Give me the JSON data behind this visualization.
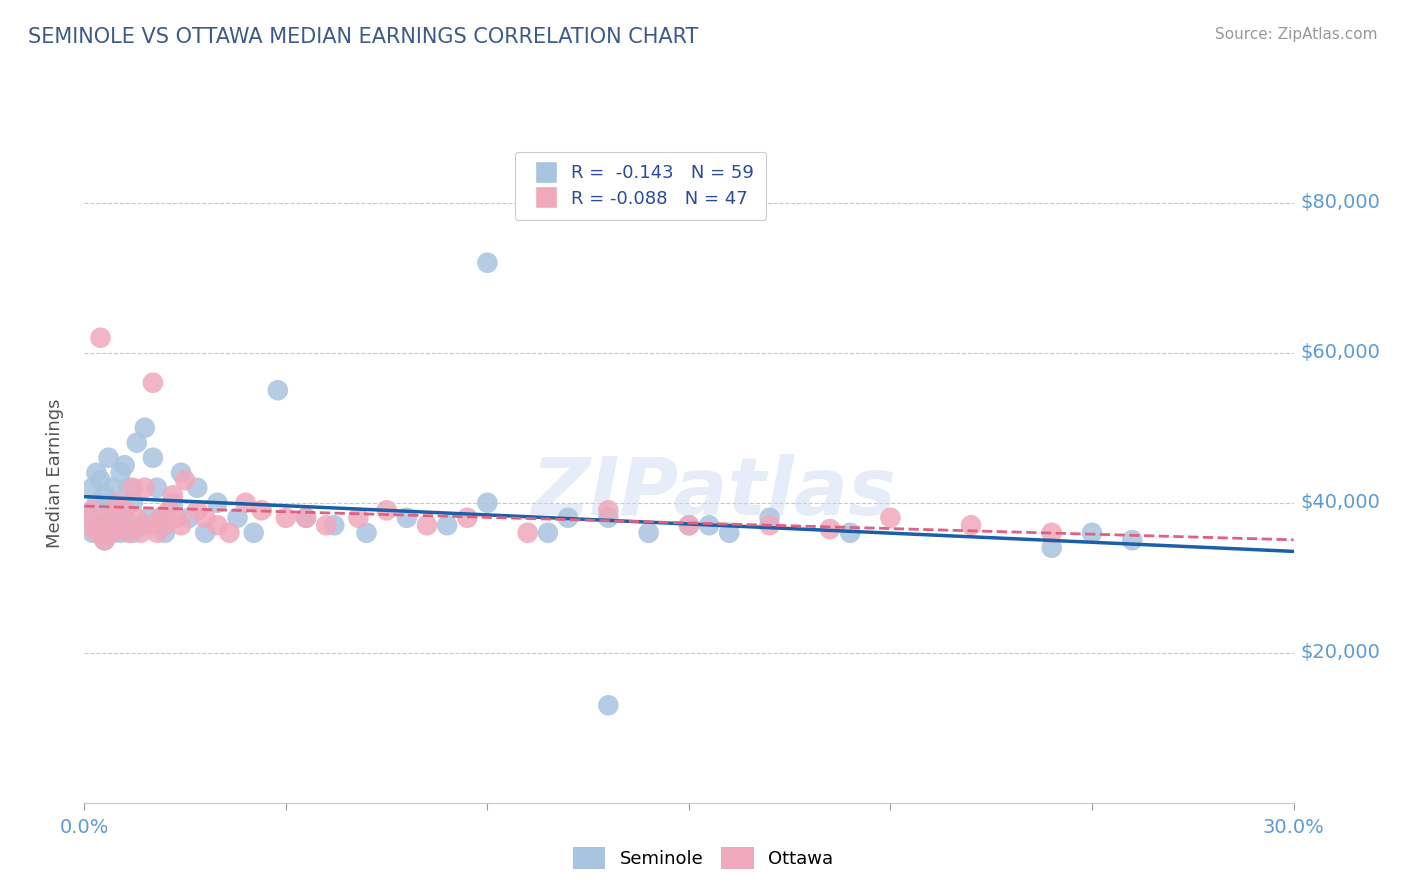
{
  "title": "SEMINOLE VS OTTAWA MEDIAN EARNINGS CORRELATION CHART",
  "source": "Source: ZipAtlas.com",
  "ylabel": "Median Earnings",
  "xlim": [
    0.0,
    0.3
  ],
  "ylim": [
    0,
    88000
  ],
  "seminole_R": "-0.143",
  "seminole_N": "59",
  "ottawa_R": "-0.088",
  "ottawa_N": "47",
  "title_color": "#3d5a8a",
  "tick_label_color": "#5b9bd5",
  "grid_color": "#c8c8c8",
  "seminole_color": "#a8c4e0",
  "ottawa_color": "#f0a8bc",
  "seminole_line_color": "#1a5fa8",
  "ottawa_line_color": "#e06080",
  "sem_x": [
    0.001,
    0.002,
    0.002,
    0.003,
    0.003,
    0.004,
    0.004,
    0.005,
    0.005,
    0.006,
    0.006,
    0.007,
    0.007,
    0.008,
    0.008,
    0.009,
    0.009,
    0.01,
    0.01,
    0.011,
    0.012,
    0.012,
    0.013,
    0.014,
    0.015,
    0.016,
    0.017,
    0.018,
    0.019,
    0.02,
    0.022,
    0.024,
    0.026,
    0.028,
    0.03,
    0.033,
    0.038,
    0.042,
    0.048,
    0.055,
    0.062,
    0.07,
    0.08,
    0.09,
    0.1,
    0.12,
    0.14,
    0.155,
    0.17,
    0.19,
    0.1,
    0.115,
    0.13,
    0.15,
    0.16,
    0.24,
    0.25,
    0.26,
    0.13
  ],
  "sem_y": [
    38000,
    42000,
    36000,
    40000,
    44000,
    37000,
    43000,
    35000,
    41000,
    38000,
    46000,
    36000,
    42000,
    39000,
    37000,
    44000,
    36000,
    45000,
    38000,
    42000,
    36000,
    40000,
    48000,
    37000,
    50000,
    38000,
    46000,
    42000,
    38000,
    36000,
    40000,
    44000,
    38000,
    42000,
    36000,
    40000,
    38000,
    36000,
    55000,
    38000,
    37000,
    36000,
    38000,
    37000,
    40000,
    38000,
    36000,
    37000,
    38000,
    36000,
    72000,
    36000,
    38000,
    37000,
    36000,
    34000,
    36000,
    35000,
    13000
  ],
  "ott_x": [
    0.001,
    0.002,
    0.003,
    0.004,
    0.004,
    0.005,
    0.006,
    0.007,
    0.008,
    0.009,
    0.01,
    0.011,
    0.012,
    0.013,
    0.014,
    0.015,
    0.016,
    0.017,
    0.018,
    0.019,
    0.02,
    0.021,
    0.022,
    0.023,
    0.024,
    0.025,
    0.028,
    0.03,
    0.033,
    0.036,
    0.04,
    0.044,
    0.05,
    0.055,
    0.06,
    0.068,
    0.075,
    0.085,
    0.095,
    0.11,
    0.13,
    0.15,
    0.17,
    0.185,
    0.2,
    0.22,
    0.24
  ],
  "ott_y": [
    37000,
    39000,
    36000,
    37000,
    62000,
    35000,
    38000,
    36000,
    40000,
    37000,
    39000,
    36000,
    42000,
    38000,
    36000,
    42000,
    37000,
    56000,
    36000,
    38000,
    37000,
    39000,
    41000,
    38000,
    37000,
    43000,
    39000,
    38000,
    37000,
    36000,
    40000,
    39000,
    38000,
    38000,
    37000,
    38000,
    39000,
    37000,
    38000,
    36000,
    39000,
    37000,
    37000,
    36500,
    38000,
    37000,
    36000
  ]
}
